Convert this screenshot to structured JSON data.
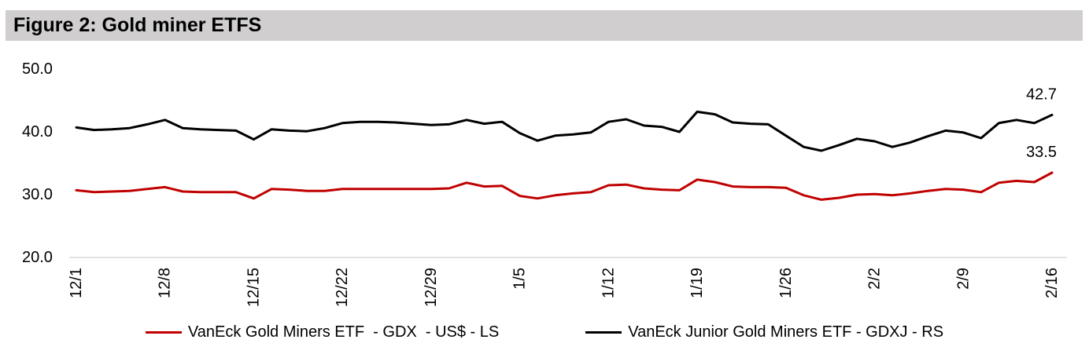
{
  "title": "Figure 2: Gold miner ETFS",
  "chart_data": {
    "type": "line",
    "title": "Figure 2: Gold miner ETFS",
    "xlabel": "",
    "ylabel": "",
    "grid": false,
    "legend_position": "bottom",
    "y_ticks": [
      50.0,
      40.0,
      30.0,
      20.0
    ],
    "ylim": [
      20.0,
      52.5
    ],
    "axis_line_color": "#D9D9D9",
    "x_tick_labels": [
      "12/1",
      "12/8",
      "12/15",
      "12/22",
      "12/29",
      "1/5",
      "1/12",
      "1/19",
      "1/26",
      "2/2",
      "2/9",
      "2/16"
    ],
    "x_tick_every": 5,
    "x_tick_rotation": -90,
    "points_per_series": 56,
    "series": [
      {
        "id": "gdx",
        "name": "VanEck Gold Miners ETF  - GDX  - US$ - LS",
        "color": "#C00000",
        "end_label": "33.5",
        "values": [
          30.7,
          30.4,
          30.5,
          30.6,
          30.9,
          31.2,
          30.5,
          30.4,
          30.4,
          30.4,
          29.4,
          30.9,
          30.8,
          30.6,
          30.6,
          30.9,
          30.9,
          30.9,
          30.9,
          30.9,
          30.9,
          31.0,
          31.9,
          31.3,
          31.4,
          29.8,
          29.4,
          29.9,
          30.2,
          30.4,
          31.5,
          31.6,
          31.0,
          30.8,
          30.7,
          32.4,
          32.0,
          31.3,
          31.2,
          31.2,
          31.1,
          29.9,
          29.2,
          29.5,
          30.0,
          30.1,
          29.9,
          30.2,
          30.6,
          30.9,
          30.8,
          30.4,
          31.9,
          32.2,
          32.0,
          33.5
        ]
      },
      {
        "id": "gdxj",
        "name": "VanEck Junior Gold Miners ETF - GDXJ - RS",
        "color": "#000000",
        "end_label": "42.7",
        "values": [
          40.7,
          40.3,
          40.4,
          40.6,
          41.2,
          41.9,
          40.6,
          40.4,
          40.3,
          40.2,
          38.8,
          40.4,
          40.2,
          40.1,
          40.6,
          41.4,
          41.6,
          41.6,
          41.5,
          41.3,
          41.1,
          41.2,
          41.9,
          41.3,
          41.6,
          39.8,
          38.6,
          39.4,
          39.6,
          39.9,
          41.6,
          42.0,
          41.0,
          40.8,
          40.0,
          43.2,
          42.8,
          41.5,
          41.3,
          41.2,
          39.4,
          37.6,
          37.0,
          37.9,
          38.9,
          38.5,
          37.6,
          38.3,
          39.3,
          40.2,
          39.9,
          39.0,
          41.4,
          41.9,
          41.4,
          42.7
        ]
      }
    ]
  }
}
